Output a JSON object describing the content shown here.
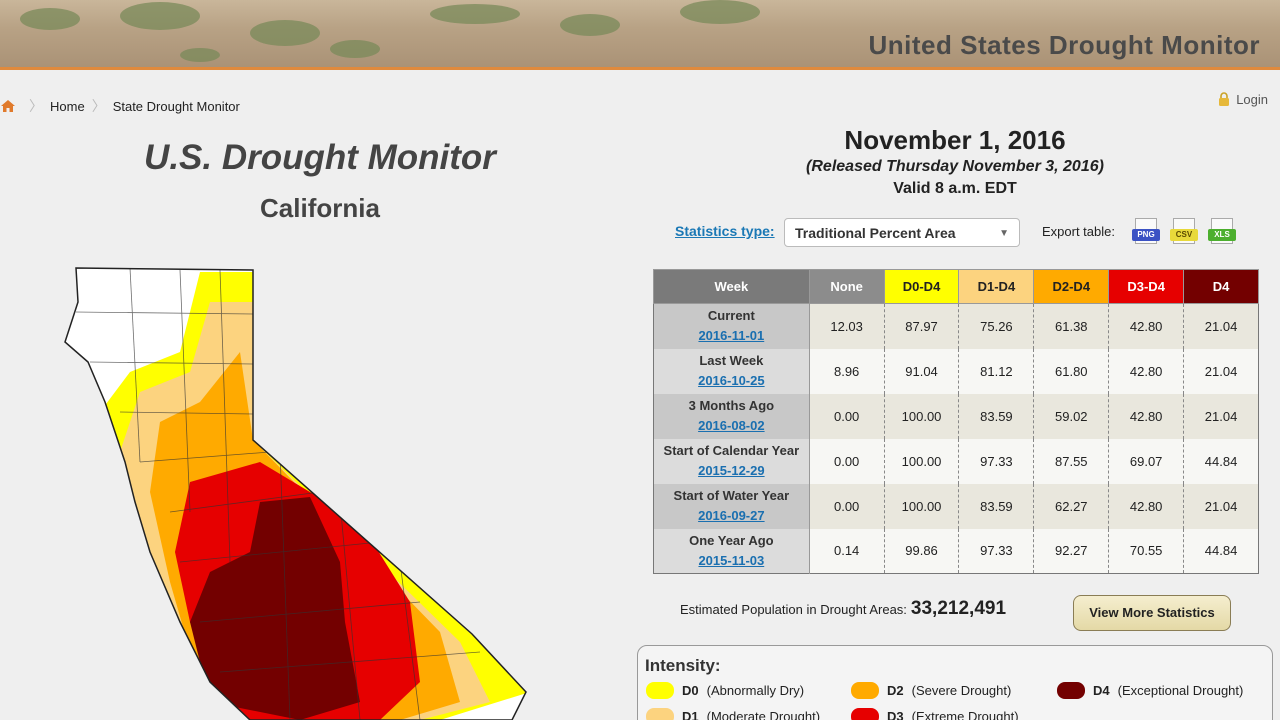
{
  "banner": {
    "title": "United States Drought Monitor"
  },
  "breadcrumb": {
    "home": "Home",
    "current": "State Drought Monitor"
  },
  "login": {
    "label": "Login"
  },
  "map": {
    "title": "U.S. Drought Monitor",
    "state": "California"
  },
  "report": {
    "date": "November 1, 2016",
    "released": "(Released Thursday November 3, 2016)",
    "valid": "Valid 8 a.m. EDT"
  },
  "controls": {
    "stat_type_label": "Statistics type:",
    "stat_type_value": "Traditional Percent Area",
    "export_label": "Export table:",
    "export_buttons": [
      "PNG",
      "CSV",
      "XLS"
    ]
  },
  "table": {
    "headers": [
      "Week",
      "None",
      "D0-D4",
      "D1-D4",
      "D2-D4",
      "D3-D4",
      "D4"
    ],
    "rows": [
      {
        "week": "Current",
        "date": "2016-11-01",
        "values": [
          "12.03",
          "87.97",
          "75.26",
          "61.38",
          "42.80",
          "21.04"
        ]
      },
      {
        "week": "Last Week",
        "date": "2016-10-25",
        "values": [
          "8.96",
          "91.04",
          "81.12",
          "61.80",
          "42.80",
          "21.04"
        ]
      },
      {
        "week": "3 Months Ago",
        "date": "2016-08-02",
        "values": [
          "0.00",
          "100.00",
          "83.59",
          "59.02",
          "42.80",
          "21.04"
        ]
      },
      {
        "week": "Start of Calendar Year",
        "date": "2015-12-29",
        "values": [
          "0.00",
          "100.00",
          "97.33",
          "87.55",
          "69.07",
          "44.84"
        ]
      },
      {
        "week": "Start of Water Year",
        "date": "2016-09-27",
        "values": [
          "0.00",
          "100.00",
          "83.59",
          "62.27",
          "42.80",
          "21.04"
        ]
      },
      {
        "week": "One Year Ago",
        "date": "2015-11-03",
        "values": [
          "0.14",
          "99.86",
          "97.33",
          "92.27",
          "70.55",
          "44.84"
        ]
      }
    ]
  },
  "population": {
    "label": "Estimated Population in Drought Areas:",
    "value": "33,212,491"
  },
  "more_stats_button": "View More Statistics",
  "legend": {
    "title": "Intensity:",
    "items": [
      {
        "code": "D0",
        "desc": "(Abnormally Dry)",
        "color": "#ffff00"
      },
      {
        "code": "D1",
        "desc": "(Moderate Drought)",
        "color": "#fcd37f"
      },
      {
        "code": "D2",
        "desc": "(Severe Drought)",
        "color": "#ffaa00"
      },
      {
        "code": "D3",
        "desc": "(Extreme Drought)",
        "color": "#e60000"
      },
      {
        "code": "D4",
        "desc": "(Exceptional Drought)",
        "color": "#730000"
      }
    ]
  }
}
